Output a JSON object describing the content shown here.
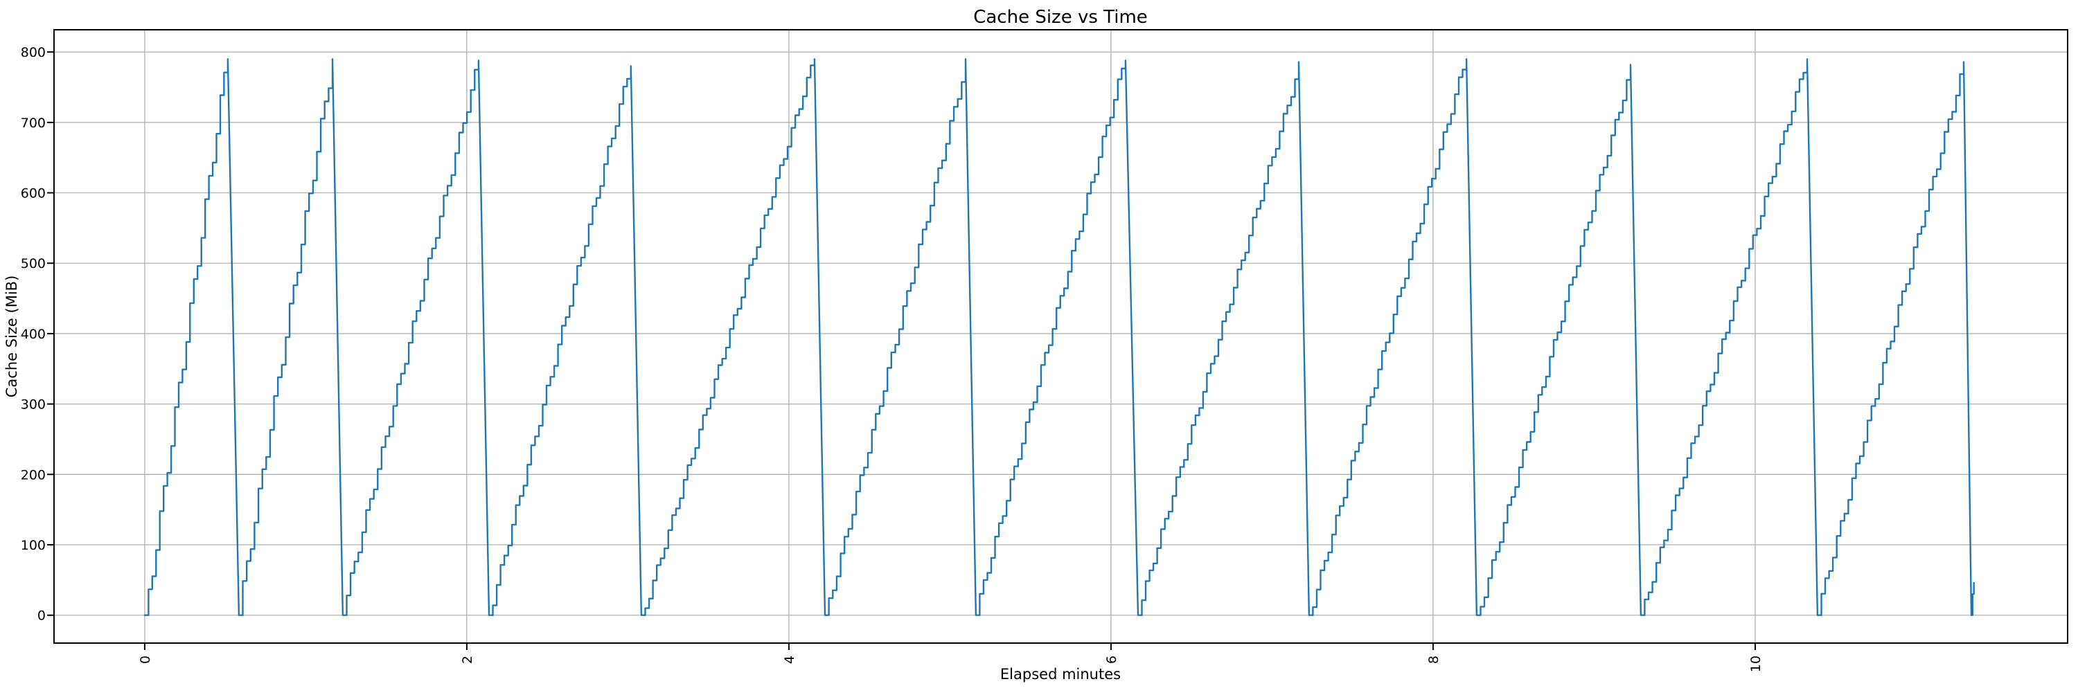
{
  "chart_data": {
    "type": "line",
    "title": "Cache Size vs Time",
    "xlabel": "Elapsed minutes",
    "ylabel": "Cache Size (MiB)",
    "xlim": [
      -0.563,
      11.94
    ],
    "ylim": [
      -39.6,
      831.6
    ],
    "xticks": [
      0,
      2,
      4,
      6,
      8,
      10
    ],
    "yticks": [
      0,
      100,
      200,
      300,
      400,
      500,
      600,
      700,
      800
    ],
    "grid": true,
    "legend": "none",
    "line_color": "#1f77b4",
    "grid_color": "#b0b0b0",
    "pattern": "sawtooth staircase: cache fills in ~16-40 MiB steps every ~1.5 s up to ~790 MiB, then flushes to 0 in ~4 s",
    "step_minutes": 0.024,
    "teeth": [
      {
        "start": 0.0,
        "peak_t": 0.516,
        "peak_v": 790
      },
      {
        "start": 0.585,
        "peak_t": 1.166,
        "peak_v": 790
      },
      {
        "start": 1.23,
        "peak_t": 2.073,
        "peak_v": 788
      },
      {
        "start": 2.138,
        "peak_t": 3.019,
        "peak_v": 780
      },
      {
        "start": 3.084,
        "peak_t": 4.159,
        "peak_v": 790
      },
      {
        "start": 4.224,
        "peak_t": 5.097,
        "peak_v": 790
      },
      {
        "start": 5.161,
        "peak_t": 6.09,
        "peak_v": 788
      },
      {
        "start": 6.168,
        "peak_t": 7.166,
        "peak_v": 786
      },
      {
        "start": 7.23,
        "peak_t": 8.207,
        "peak_v": 790
      },
      {
        "start": 8.271,
        "peak_t": 9.226,
        "peak_v": 782
      },
      {
        "start": 9.29,
        "peak_t": 10.323,
        "peak_v": 790
      },
      {
        "start": 10.387,
        "peak_t": 11.295,
        "peak_v": 786
      }
    ],
    "tail": [
      [
        11.342,
        0
      ],
      [
        11.35,
        0
      ],
      [
        11.35,
        30
      ],
      [
        11.358,
        30
      ],
      [
        11.358,
        46
      ]
    ]
  }
}
